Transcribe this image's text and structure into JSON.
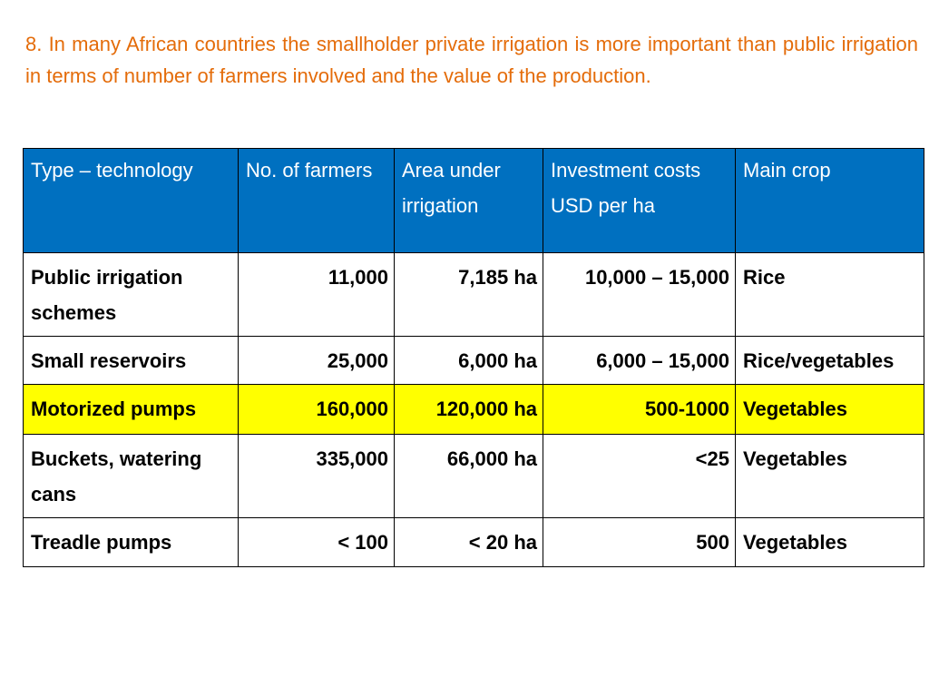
{
  "intro": "8. In many African countries the smallholder private irrigation is more important than public irrigation in terms of number of farmers involved and the value of the production.",
  "colors": {
    "intro_text": "#e46c0a",
    "header_bg": "#0070c0",
    "header_text": "#ffffff",
    "highlight_row": "#ffff00"
  },
  "table": {
    "headers": [
      "Type – technology",
      "No. of farmers",
      "Area under irrigation",
      "Investment costs USD per ha",
      "Main crop"
    ],
    "rows": [
      {
        "type": "Public irrigation schemes",
        "farmers": "11,000",
        "area": "7,185 ha",
        "investment": "10,000 – 15,000",
        "crop": "Rice",
        "highlighted": false
      },
      {
        "type": "Small reservoirs",
        "farmers": "25,000",
        "area": "6,000 ha",
        "investment": "6,000 – 15,000",
        "crop": "Rice/vegetables",
        "highlighted": false
      },
      {
        "type": "Motorized pumps",
        "farmers": "160,000",
        "area": "120,000 ha",
        "investment": "500-1000",
        "crop": "Vegetables",
        "highlighted": true
      },
      {
        "type": "Buckets, watering cans",
        "farmers": "335,000",
        "area": "66,000 ha",
        "investment": "<25",
        "crop": "Vegetables",
        "highlighted": false
      },
      {
        "type": "Treadle pumps",
        "farmers": "< 100",
        "area": "< 20 ha",
        "investment": "500",
        "crop": "Vegetables",
        "highlighted": false
      }
    ]
  }
}
